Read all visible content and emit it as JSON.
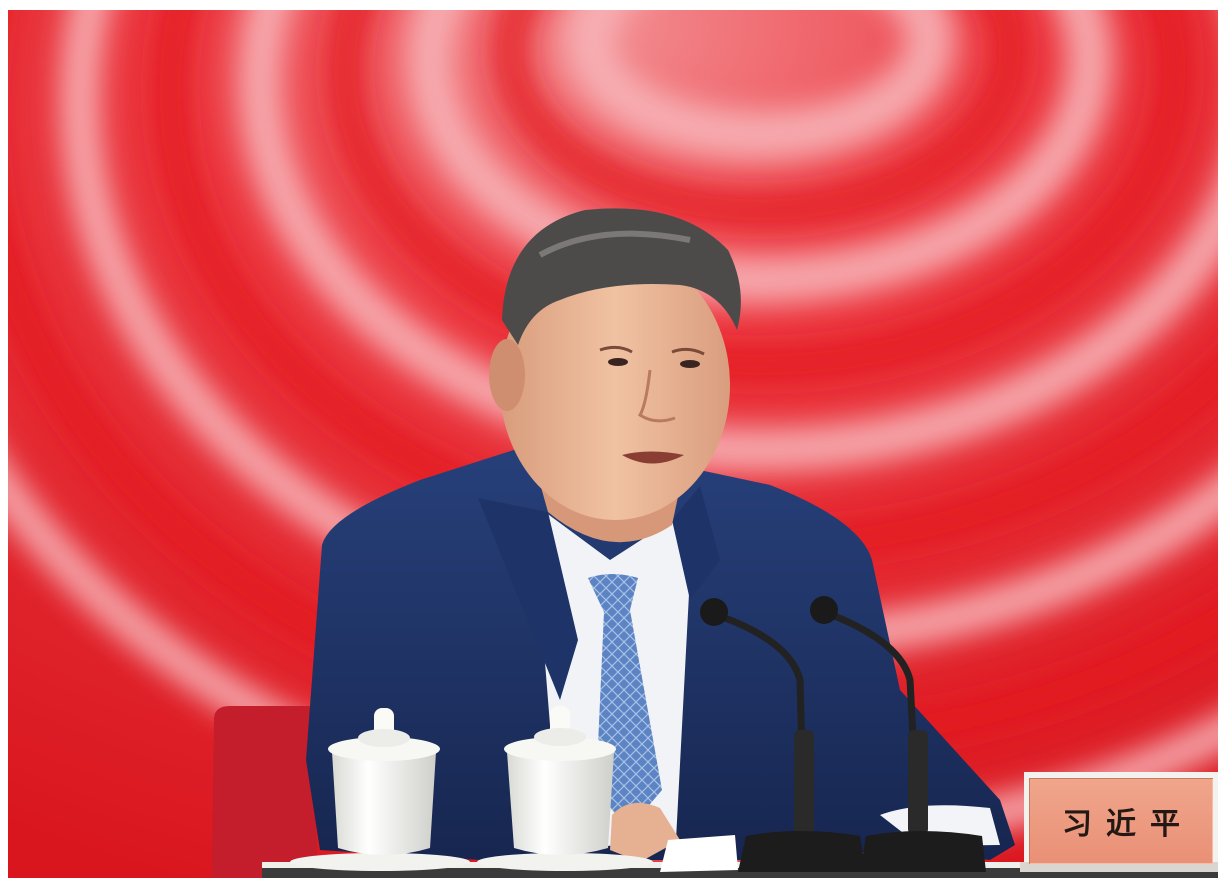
{
  "nameplate": {
    "name": "习近平"
  },
  "colors": {
    "backdrop_red": "#e8202b",
    "backdrop_pink": "#f4a3a8",
    "suit_navy": "#1d2f5e",
    "tie_blue": "#5f86c4",
    "nameplate": "#ee9c82",
    "table": "#ffffff"
  },
  "icons": [
    "microphone-icon",
    "tea-cup-icon"
  ]
}
